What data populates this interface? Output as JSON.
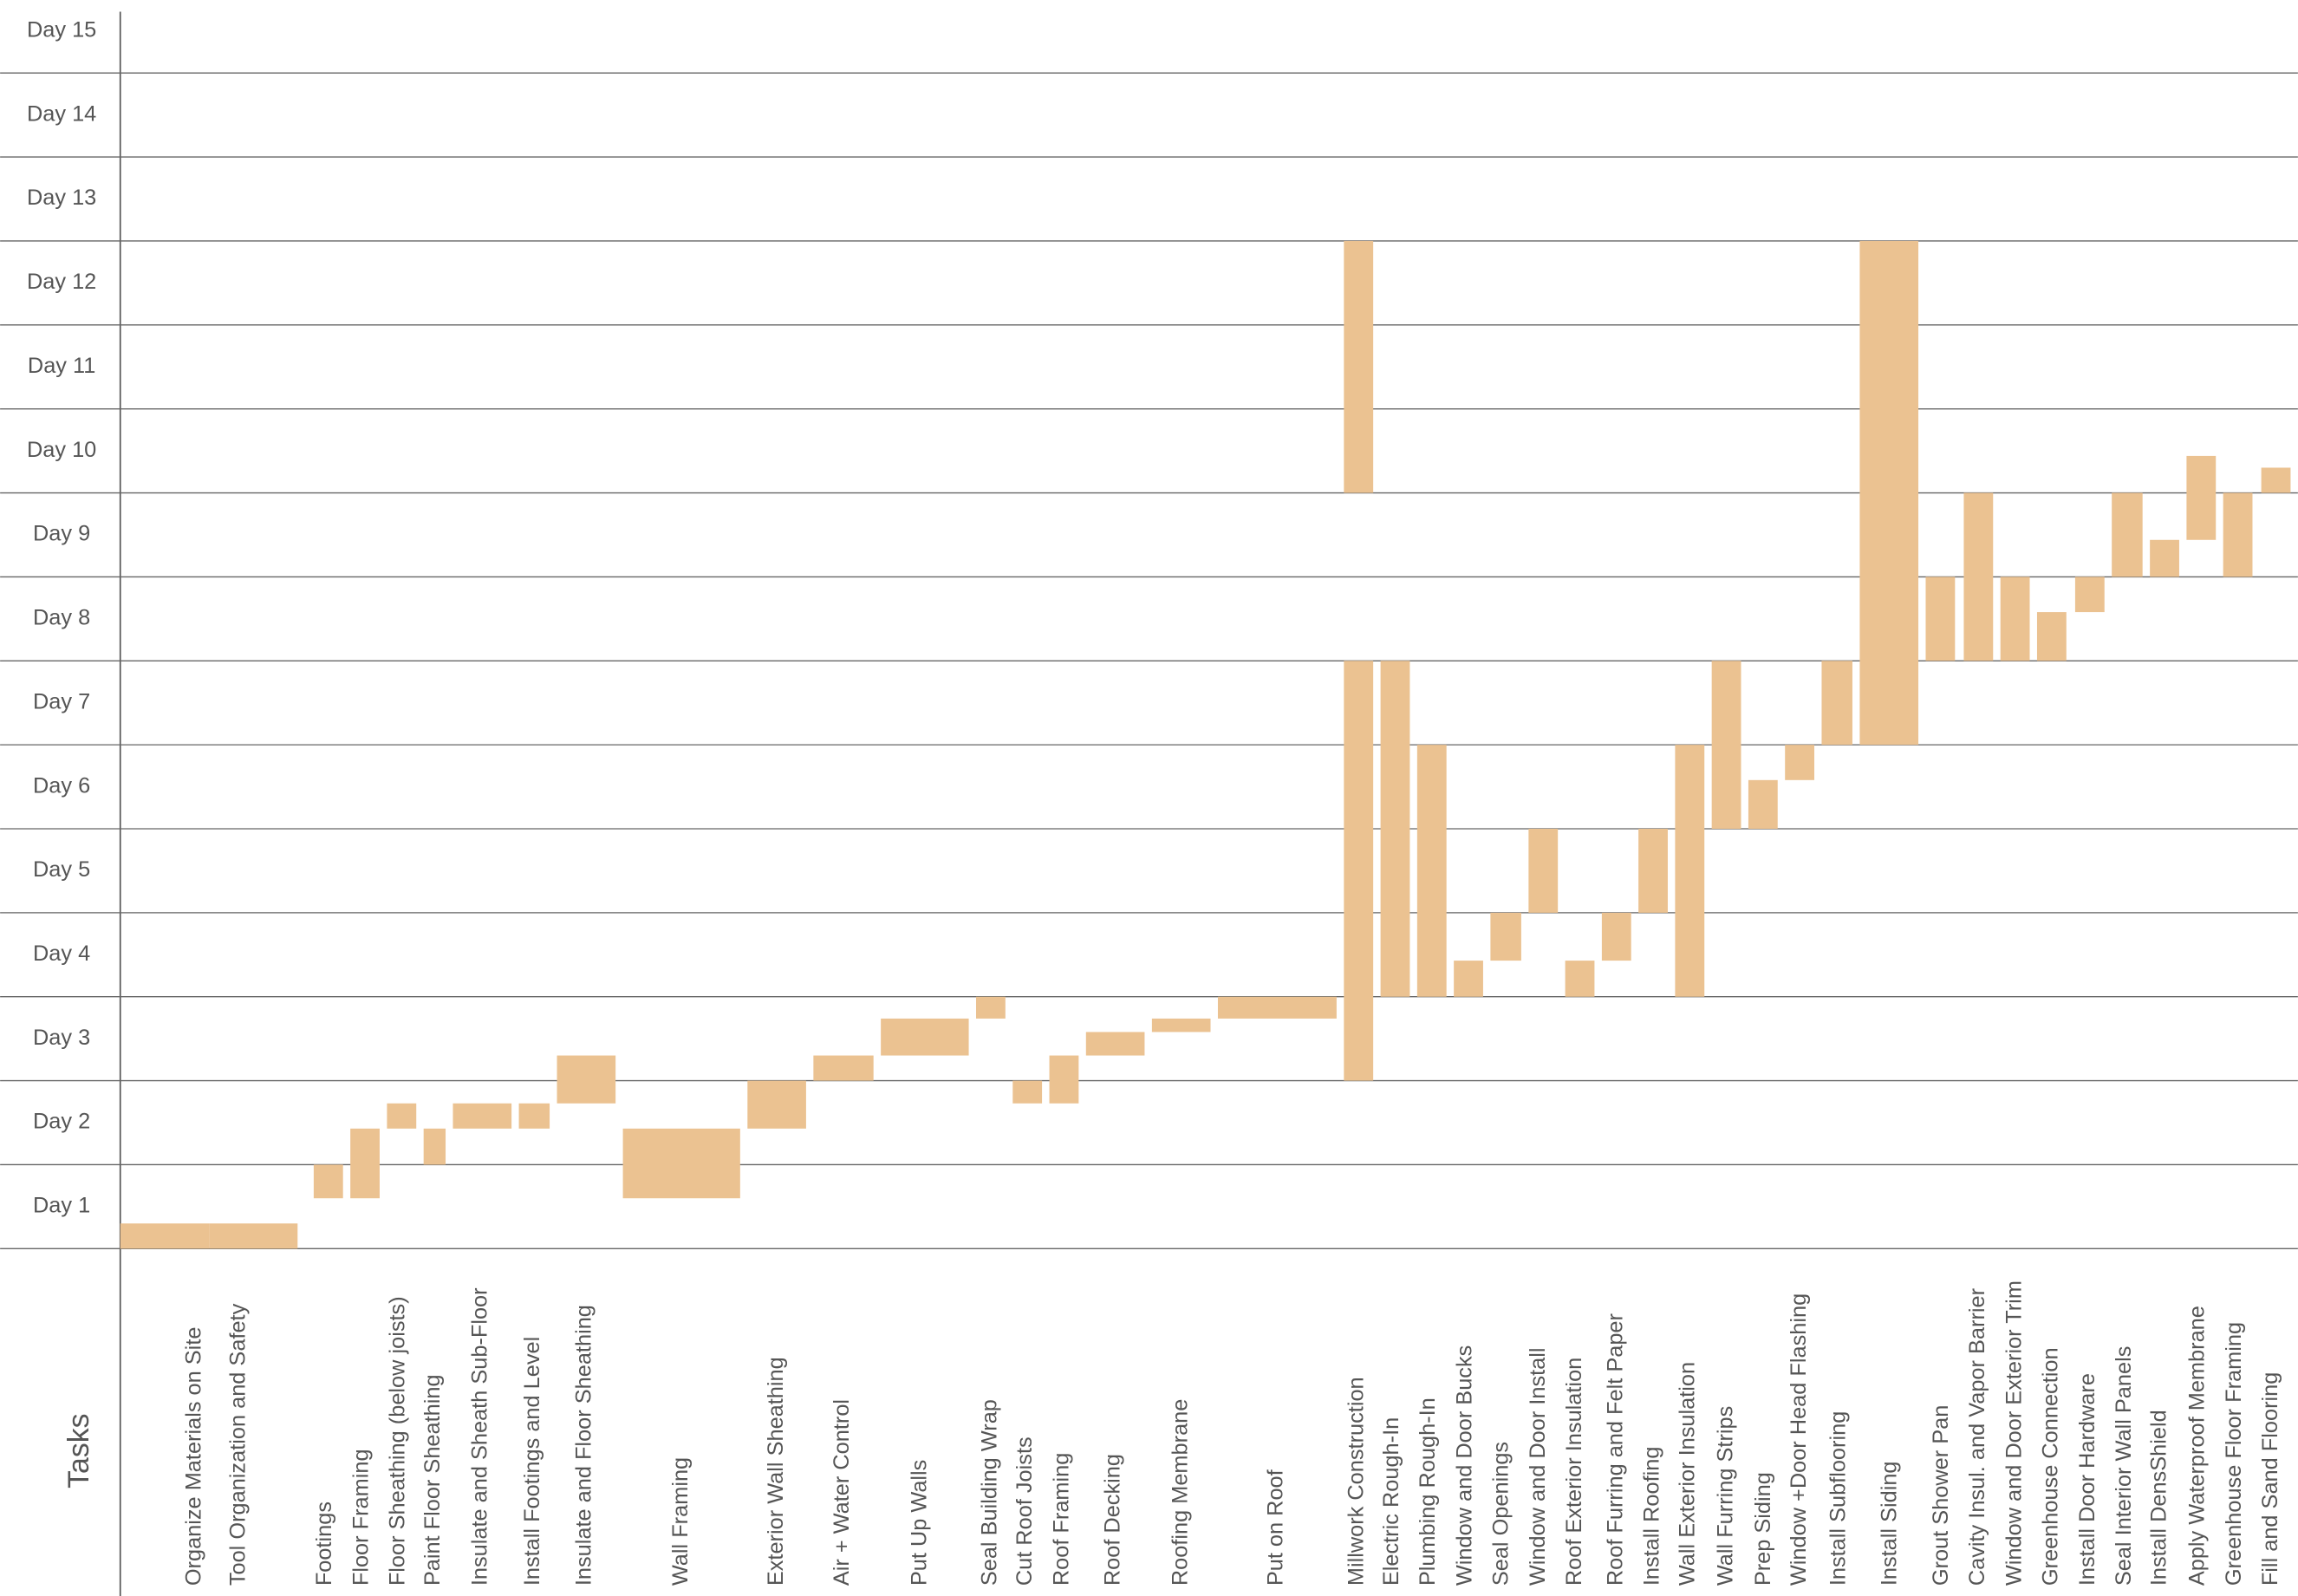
{
  "chart_data": {
    "type": "gantt",
    "x_label": "Tasks",
    "y_categories": [
      "Day 1",
      "Day 2",
      "Day 3",
      "Day 4",
      "Day 5",
      "Day 6",
      "Day 7",
      "Day 8",
      "Day 9",
      "Day 10",
      "Day 11",
      "Day 12",
      "Day 13",
      "Day 14",
      "Day 15"
    ],
    "ylim": [
      0,
      15
    ],
    "color": "#ebc291",
    "grid": true,
    "categories": [
      "Organize Materials on Site",
      "Tool Organization and Safety",
      "Footings",
      "Floor Framing",
      "Floor Sheathing (below joists)",
      "Paint Floor Sheathing",
      "Insulate and Sheath Sub-Floor",
      "Install Footings and Level",
      "Insulate and Floor Sheathing",
      "Wall Framing",
      "Exterior Wall Sheathing",
      "Air + Water Control",
      "Put Up Walls",
      "Seal Building Wrap",
      "Cut Roof Joists",
      "Roof Framing",
      "Roof Decking",
      "Roofing Membrane",
      "Put on Roof",
      "Millwork Construction",
      "Electric Rough-In",
      "Plumbing Rough-In",
      "Window and Door Bucks",
      "Seal Openings",
      "Window and Door Install",
      "Roof Exterior Insulation",
      "Roof Furring and Felt Paper",
      "Install Roofing",
      "Wall Exterior Insulation",
      "Wall Furring Strips",
      "Prep Siding",
      "Window +Door Head Flashing",
      "Install Subflooring",
      "Install Siding",
      "Grout Shower Pan",
      "Cavity Insul. and Vapor Barrier",
      "Window and Door Exterior Trim",
      "Greenhouse Connection",
      "Install Door Hardware",
      "Seal Interior Wall Panels",
      "Install DensShield",
      "Apply Waterproof Membrane",
      "Greenhouse Floor Framing",
      "Fill and Sand Flooring"
    ],
    "spans": [
      [
        [
          0,
          0.3
        ]
      ],
      [
        [
          0,
          0.3
        ]
      ],
      [
        [
          0.6,
          1
        ]
      ],
      [
        [
          0.6,
          1.43
        ]
      ],
      [
        [
          1.43,
          1.73
        ]
      ],
      [
        [
          1,
          1.43
        ]
      ],
      [
        [
          1.43,
          1.73
        ]
      ],
      [
        [
          1.43,
          1.73
        ]
      ],
      [
        [
          1.73,
          2.3
        ]
      ],
      [
        [
          0.6,
          1.43
        ]
      ],
      [
        [
          1.43,
          2
        ]
      ],
      [
        [
          2,
          2.3
        ]
      ],
      [
        [
          2.3,
          2.74
        ]
      ],
      [
        [
          2.74,
          3
        ]
      ],
      [
        [
          1.73,
          2
        ]
      ],
      [
        [
          1.73,
          2.3
        ]
      ],
      [
        [
          2.3,
          2.58
        ]
      ],
      [
        [
          2.58,
          2.74
        ]
      ],
      [
        [
          2.74,
          3
        ]
      ],
      [
        [
          2,
          7
        ],
        [
          9,
          12
        ]
      ],
      [
        [
          3,
          7
        ]
      ],
      [
        [
          3,
          6
        ]
      ],
      [
        [
          3,
          3.43
        ]
      ],
      [
        [
          3.43,
          4
        ]
      ],
      [
        [
          4,
          5
        ]
      ],
      [
        [
          3,
          3.43
        ]
      ],
      [
        [
          3.43,
          4
        ]
      ],
      [
        [
          4,
          5
        ]
      ],
      [
        [
          3,
          6
        ]
      ],
      [
        [
          5,
          7
        ]
      ],
      [
        [
          5,
          5.58
        ]
      ],
      [
        [
          5.58,
          6
        ]
      ],
      [
        [
          6,
          7
        ]
      ],
      [
        [
          6,
          12
        ]
      ],
      [
        [
          7,
          8
        ]
      ],
      [
        [
          7,
          9
        ]
      ],
      [
        [
          7,
          8
        ]
      ],
      [
        [
          7,
          7.58
        ]
      ],
      [
        [
          7.58,
          8
        ]
      ],
      [
        [
          8,
          9
        ]
      ],
      [
        [
          8,
          8.44
        ]
      ],
      [
        [
          8.44,
          9.44
        ]
      ],
      [
        [
          8,
          9
        ]
      ],
      [
        [
          9,
          9.3
        ]
      ]
    ]
  }
}
